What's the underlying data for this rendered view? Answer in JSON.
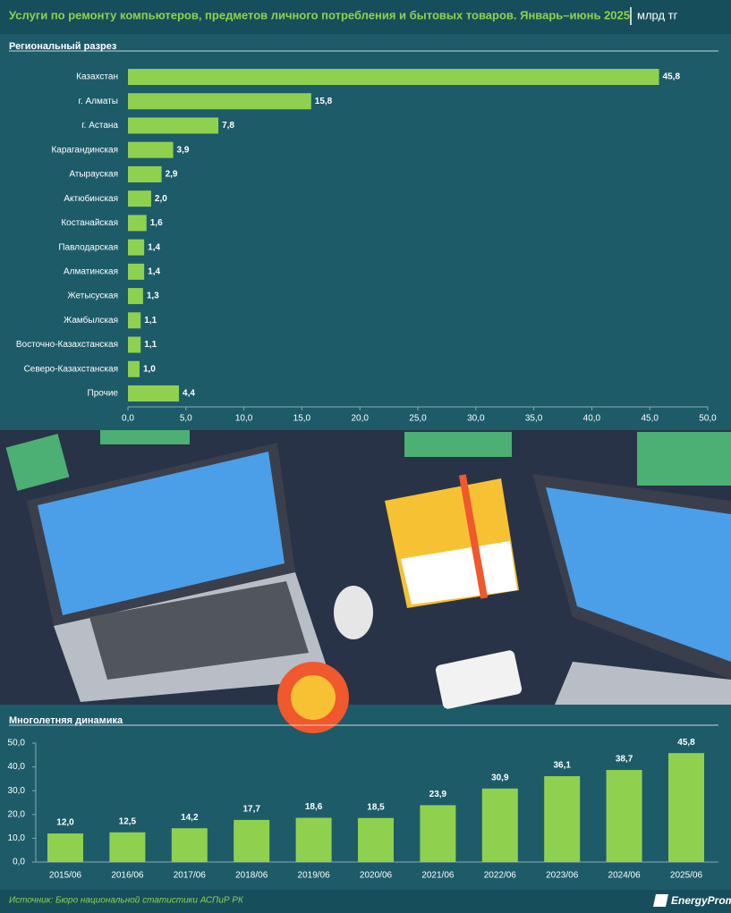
{
  "header": {
    "title": "Услуги по ремонту компьютеров, предметов личного потребления и бытовых товаров. Январь–июнь 2025",
    "unit": "млрд тг"
  },
  "footer": {
    "source": "Источник: Бюро национальной статистики АСПиР РК",
    "logo": "EnergyProm"
  },
  "chart_data": [
    {
      "type": "hbar",
      "title": "Региональный разрез",
      "categories": [
        "Казахстан",
        "г. Алматы",
        "г. Астана",
        "Карагандинская",
        "Атырауская",
        "Актюбинская",
        "Костанайская",
        "Павлодарская",
        "Алматинская",
        "Жетысуская",
        "Жамбылская",
        "Восточно-Казахстанская",
        "Северо-Казахстанская",
        "Прочие"
      ],
      "values": [
        45.8,
        15.8,
        7.8,
        3.9,
        2.9,
        2.0,
        1.6,
        1.4,
        1.4,
        1.3,
        1.1,
        1.1,
        1.0,
        4.4
      ],
      "value_labels": [
        "45,8",
        "15,8",
        "7,8",
        "3,9",
        "2,9",
        "2,0",
        "1,6",
        "1,4",
        "1,4",
        "1,3",
        "1,1",
        "1,1",
        "1,0",
        "4,4"
      ],
      "color": "#8fd14f",
      "xlim": [
        0,
        50
      ],
      "xticks": [
        {
          "value": 0,
          "label": "0,0"
        },
        {
          "value": 5,
          "label": "5,0"
        },
        {
          "value": 10,
          "label": "10,0"
        },
        {
          "value": 15,
          "label": "15,0"
        },
        {
          "value": 20,
          "label": "20,0"
        },
        {
          "value": 25,
          "label": "25,0"
        },
        {
          "value": 30,
          "label": "30,0"
        },
        {
          "value": 35,
          "label": "35,0"
        },
        {
          "value": 40,
          "label": "40,0"
        },
        {
          "value": 45,
          "label": "45,0"
        },
        {
          "value": 50,
          "label": "50,0"
        }
      ],
      "grid": false
    },
    {
      "type": "bar",
      "title": "Многолетняя динамика",
      "categories": [
        "2015/06",
        "2016/06",
        "2017/06",
        "2018/06",
        "2019/06",
        "2020/06",
        "2021/06",
        "2022/06",
        "2023/06",
        "2024/06",
        "2025/06"
      ],
      "values": [
        12.0,
        12.5,
        14.2,
        17.7,
        18.6,
        18.5,
        23.9,
        30.9,
        36.1,
        38.7,
        45.8
      ],
      "value_labels": [
        "12,0",
        "12,5",
        "14,2",
        "17,7",
        "18,6",
        "18,5",
        "23,9",
        "30,9",
        "36,1",
        "38,7",
        "45,8"
      ],
      "color": "#8fd14f",
      "ylim": [
        0,
        50
      ],
      "yticks": [
        {
          "value": 0,
          "label": "0,0"
        },
        {
          "value": 10,
          "label": "10,0"
        },
        {
          "value": 20,
          "label": "20,0"
        },
        {
          "value": 30,
          "label": "30,0"
        },
        {
          "value": 40,
          "label": "40,0"
        },
        {
          "value": 50,
          "label": "50,0"
        }
      ],
      "grid": false
    }
  ]
}
